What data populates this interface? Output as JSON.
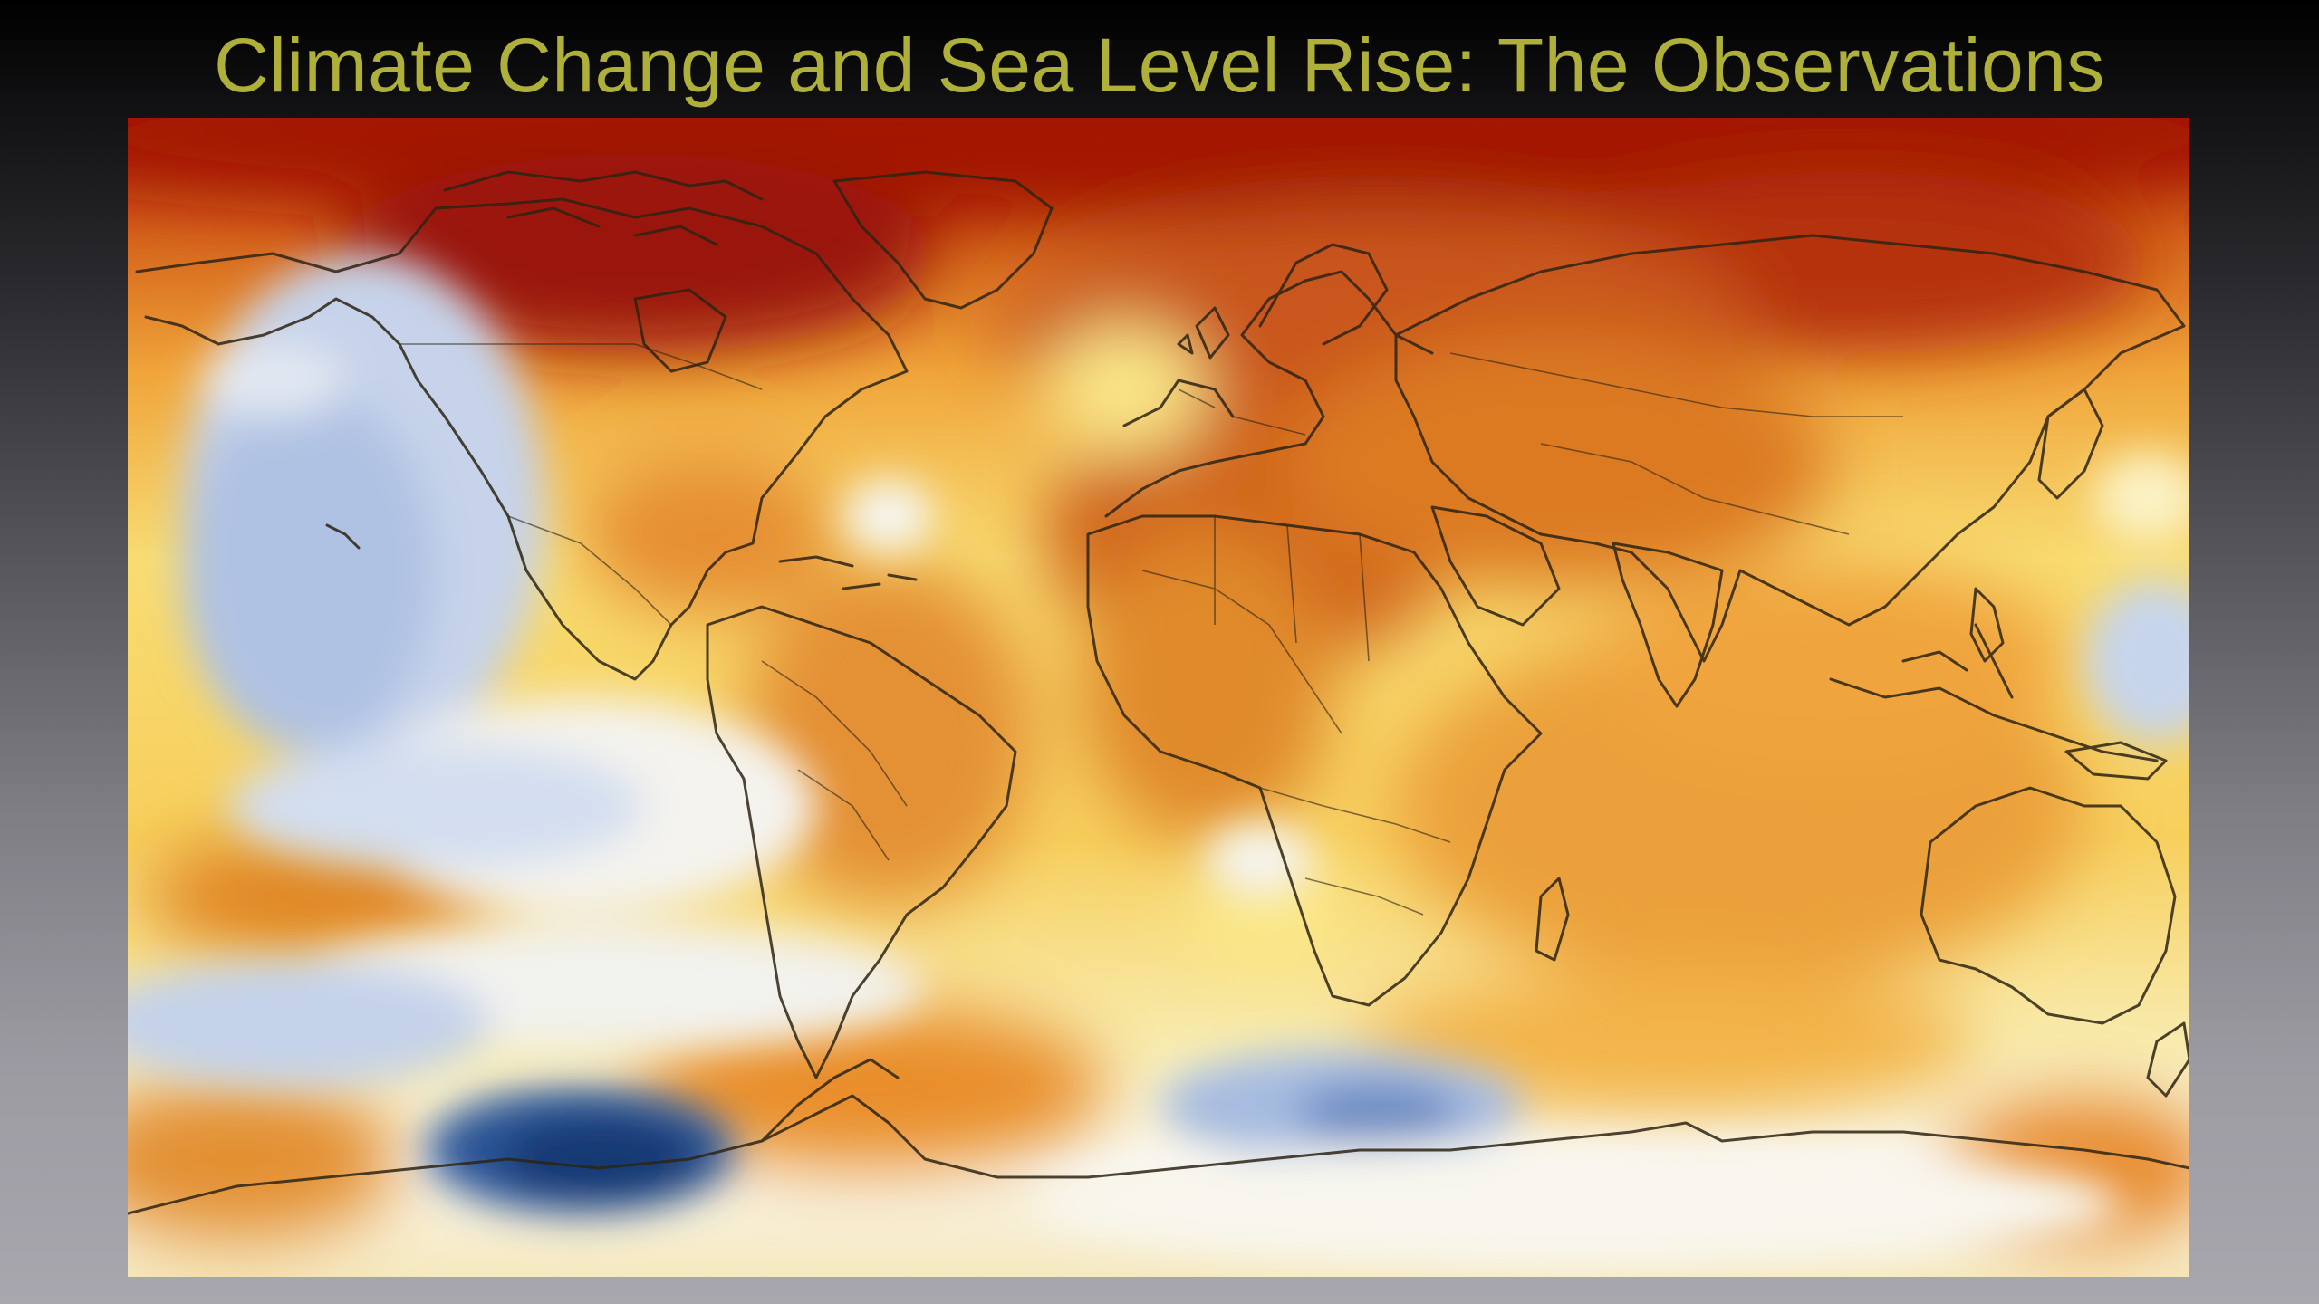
{
  "slide": {
    "title": "Climate Change and Sea Level Rise: The Observations"
  },
  "map": {
    "type": "global-temperature-anomaly",
    "projection": "equirectangular",
    "color_scale": {
      "cold_dark": "#173e7d",
      "cold": "#9db4dc",
      "neutral": "#f7f6f2",
      "warm_light": "#f9e27a",
      "warm": "#f0a53a",
      "hot": "#d56a1e",
      "hottest": "#a71606"
    },
    "outline_color": "#2d2414"
  }
}
